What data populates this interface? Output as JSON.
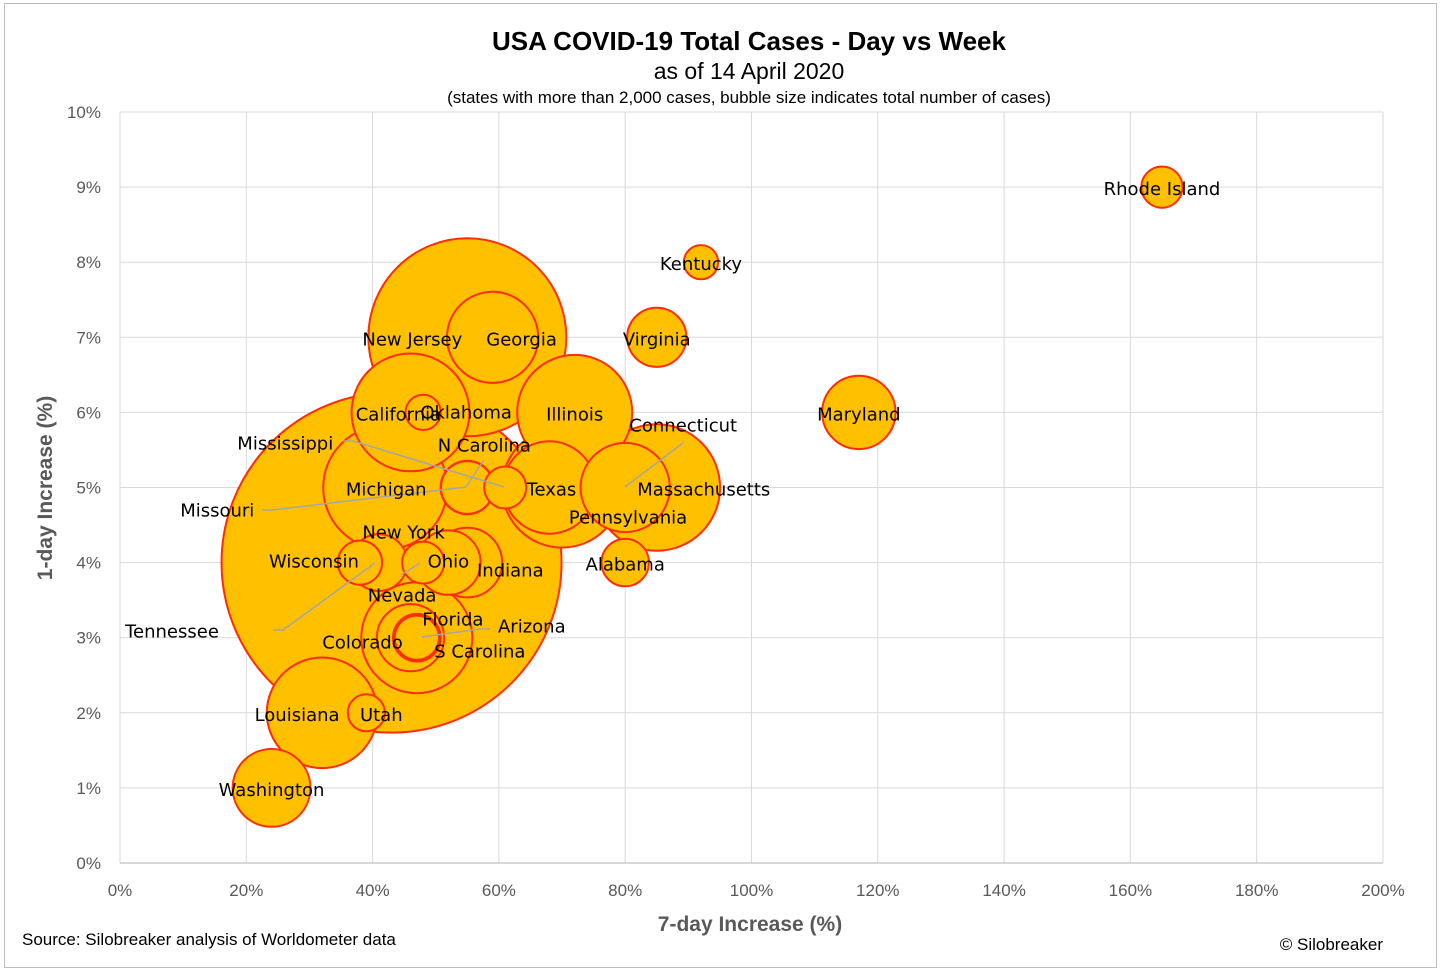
{
  "chart_data": {
    "type": "scatter",
    "subtype": "bubble",
    "title": "USA COVID-19 Total Cases - Day vs Week",
    "subtitle": "as of 14 April 2020",
    "note": "(states with more than 2,000 cases, bubble size indicates total number of cases)",
    "xlabel": "7-day Increase (%)",
    "ylabel": "1-day Increase (%)",
    "xlim": [
      0,
      200
    ],
    "ylim": [
      0,
      10
    ],
    "x_ticks": [
      0,
      20,
      40,
      60,
      80,
      100,
      120,
      140,
      160,
      180,
      200
    ],
    "y_ticks": [
      0,
      1,
      2,
      3,
      4,
      5,
      6,
      7,
      8,
      9,
      10
    ],
    "x_tick_labels": [
      "0%",
      "20%",
      "40%",
      "60%",
      "80%",
      "100%",
      "120%",
      "140%",
      "160%",
      "180%",
      "200%"
    ],
    "y_tick_labels": [
      "0%",
      "1%",
      "2%",
      "3%",
      "4%",
      "5%",
      "6%",
      "7%",
      "8%",
      "9%",
      "10%"
    ],
    "grid": true,
    "legend": "none",
    "colors": {
      "fill": "#FFC000",
      "stroke": "#FF2D00",
      "leader": "#a6a6a6",
      "grid": "#d9d9d9"
    },
    "series": [
      {
        "points": [
          {
            "state": "New York",
            "x": 43,
            "y": 4,
            "size": 203020
          },
          {
            "state": "New Jersey",
            "x": 55,
            "y": 7,
            "size": 68824
          },
          {
            "state": "Massachusetts",
            "x": 85,
            "y": 5,
            "size": 28163
          },
          {
            "state": "Michigan",
            "x": 42,
            "y": 5,
            "size": 27001
          },
          {
            "state": "Pennsylvania",
            "x": 70,
            "y": 5,
            "size": 25345
          },
          {
            "state": "California",
            "x": 46,
            "y": 6,
            "size": 24334
          },
          {
            "state": "Illinois",
            "x": 72,
            "y": 6,
            "size": 23248
          },
          {
            "state": "Florida",
            "x": 47,
            "y": 3,
            "size": 21628
          },
          {
            "state": "Louisiana",
            "x": 32,
            "y": 2,
            "size": 21518
          },
          {
            "state": "Texas",
            "x": 68,
            "y": 5,
            "size": 15006
          },
          {
            "state": "Georgia",
            "x": 59,
            "y": 7,
            "size": 14578
          },
          {
            "state": "Connecticut",
            "x": 80,
            "y": 5,
            "size": 13989
          },
          {
            "state": "Washington",
            "x": 24,
            "y": 1,
            "size": 10609
          },
          {
            "state": "Maryland",
            "x": 117,
            "y": 6,
            "size": 9472
          },
          {
            "state": "Indiana",
            "x": 55,
            "y": 4,
            "size": 8527
          },
          {
            "state": "Colorado",
            "x": 46,
            "y": 3,
            "size": 7950
          },
          {
            "state": "Ohio",
            "x": 52,
            "y": 4,
            "size": 7285
          },
          {
            "state": "Virginia",
            "x": 85,
            "y": 7,
            "size": 6171
          },
          {
            "state": "Tennessee",
            "x": 41,
            "y": 4,
            "size": 5610
          },
          {
            "state": "N Carolina",
            "x": 55,
            "y": 5,
            "size": 5024
          },
          {
            "state": "Missouri",
            "x": 55,
            "y": 5,
            "size": 4895
          },
          {
            "state": "Arizona",
            "x": 47,
            "y": 3,
            "size": 3964
          },
          {
            "state": "Alabama",
            "x": 80,
            "y": 4,
            "size": 3953
          },
          {
            "state": "S Carolina",
            "x": 47,
            "y": 3,
            "size": 3439
          },
          {
            "state": "Wisconsin",
            "x": 38,
            "y": 4,
            "size": 3428
          },
          {
            "state": "Nevada",
            "x": 48,
            "y": 4,
            "size": 3088
          },
          {
            "state": "Mississippi",
            "x": 61,
            "y": 5,
            "size": 3087
          },
          {
            "state": "Rhode Island",
            "x": 165,
            "y": 9,
            "size": 2976
          },
          {
            "state": "Utah",
            "x": 39,
            "y": 2,
            "size": 2412
          },
          {
            "state": "Oklahoma",
            "x": 48,
            "y": 6,
            "size": 2184
          },
          {
            "state": "Kentucky",
            "x": 92,
            "y": 8,
            "size": 2048
          }
        ]
      }
    ]
  },
  "footer": {
    "source": "Source: Silobreaker analysis of Worldometer data",
    "copyright": "© Silobreaker"
  }
}
